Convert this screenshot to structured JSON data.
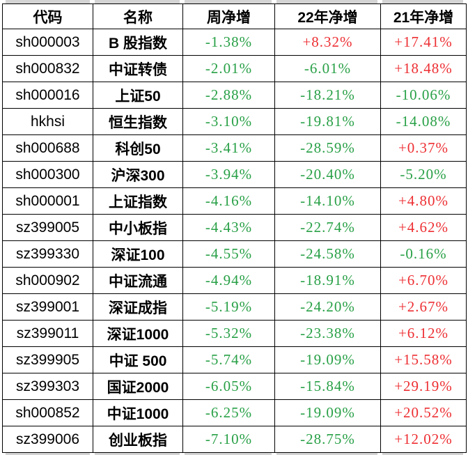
{
  "colors": {
    "up_positive_red": "#ed2f33",
    "down_negative_green": "#28a046",
    "border": "#000000",
    "strip_grey": "#d4d4d4"
  },
  "table": {
    "columns": [
      "代码",
      "名称",
      "周净增",
      "22年净增",
      "21年净增"
    ],
    "rows": [
      {
        "code": "sh000003",
        "name": "B 股指数",
        "week": "-1.38%",
        "y22": "+8.32%",
        "y21": "+17.41%"
      },
      {
        "code": "sh000832",
        "name": "中证转债",
        "week": "-2.01%",
        "y22": "-6.01%",
        "y21": "+18.48%"
      },
      {
        "code": "sh000016",
        "name": "上证50",
        "week": "-2.88%",
        "y22": "-18.21%",
        "y21": "-10.06%"
      },
      {
        "code": "hkhsi",
        "name": "恒生指数",
        "week": "-3.10%",
        "y22": "-19.81%",
        "y21": "-14.08%"
      },
      {
        "code": "sh000688",
        "name": "科创50",
        "week": "-3.41%",
        "y22": "-28.59%",
        "y21": "+0.37%"
      },
      {
        "code": "sh000300",
        "name": "沪深300",
        "week": "-3.94%",
        "y22": "-20.40%",
        "y21": "-5.20%"
      },
      {
        "code": "sh000001",
        "name": "上证指数",
        "week": "-4.16%",
        "y22": "-14.10%",
        "y21": "+4.80%"
      },
      {
        "code": "sz399005",
        "name": "中小板指",
        "week": "-4.43%",
        "y22": "-22.74%",
        "y21": "+4.62%"
      },
      {
        "code": "sz399330",
        "name": "深证100",
        "week": "-4.55%",
        "y22": "-24.58%",
        "y21": "-0.16%"
      },
      {
        "code": "sh000902",
        "name": "中证流通",
        "week": "-4.94%",
        "y22": "-18.91%",
        "y21": "+6.70%"
      },
      {
        "code": "sz399001",
        "name": "深证成指",
        "week": "-5.19%",
        "y22": "-24.20%",
        "y21": "+2.67%"
      },
      {
        "code": "sz399011",
        "name": "深证1000",
        "week": "-5.32%",
        "y22": "-23.38%",
        "y21": "+6.12%"
      },
      {
        "code": "sz399905",
        "name": "中证 500",
        "week": "-5.74%",
        "y22": "-19.09%",
        "y21": "+15.58%"
      },
      {
        "code": "sz399303",
        "name": "国证2000",
        "week": "-6.05%",
        "y22": "-15.84%",
        "y21": "+29.19%"
      },
      {
        "code": "sh000852",
        "name": "中证1000",
        "week": "-6.25%",
        "y22": "-19.09%",
        "y21": "+20.52%"
      },
      {
        "code": "sz399006",
        "name": "创业板指",
        "week": "-7.10%",
        "y22": "-28.75%",
        "y21": "+12.02%"
      }
    ]
  }
}
